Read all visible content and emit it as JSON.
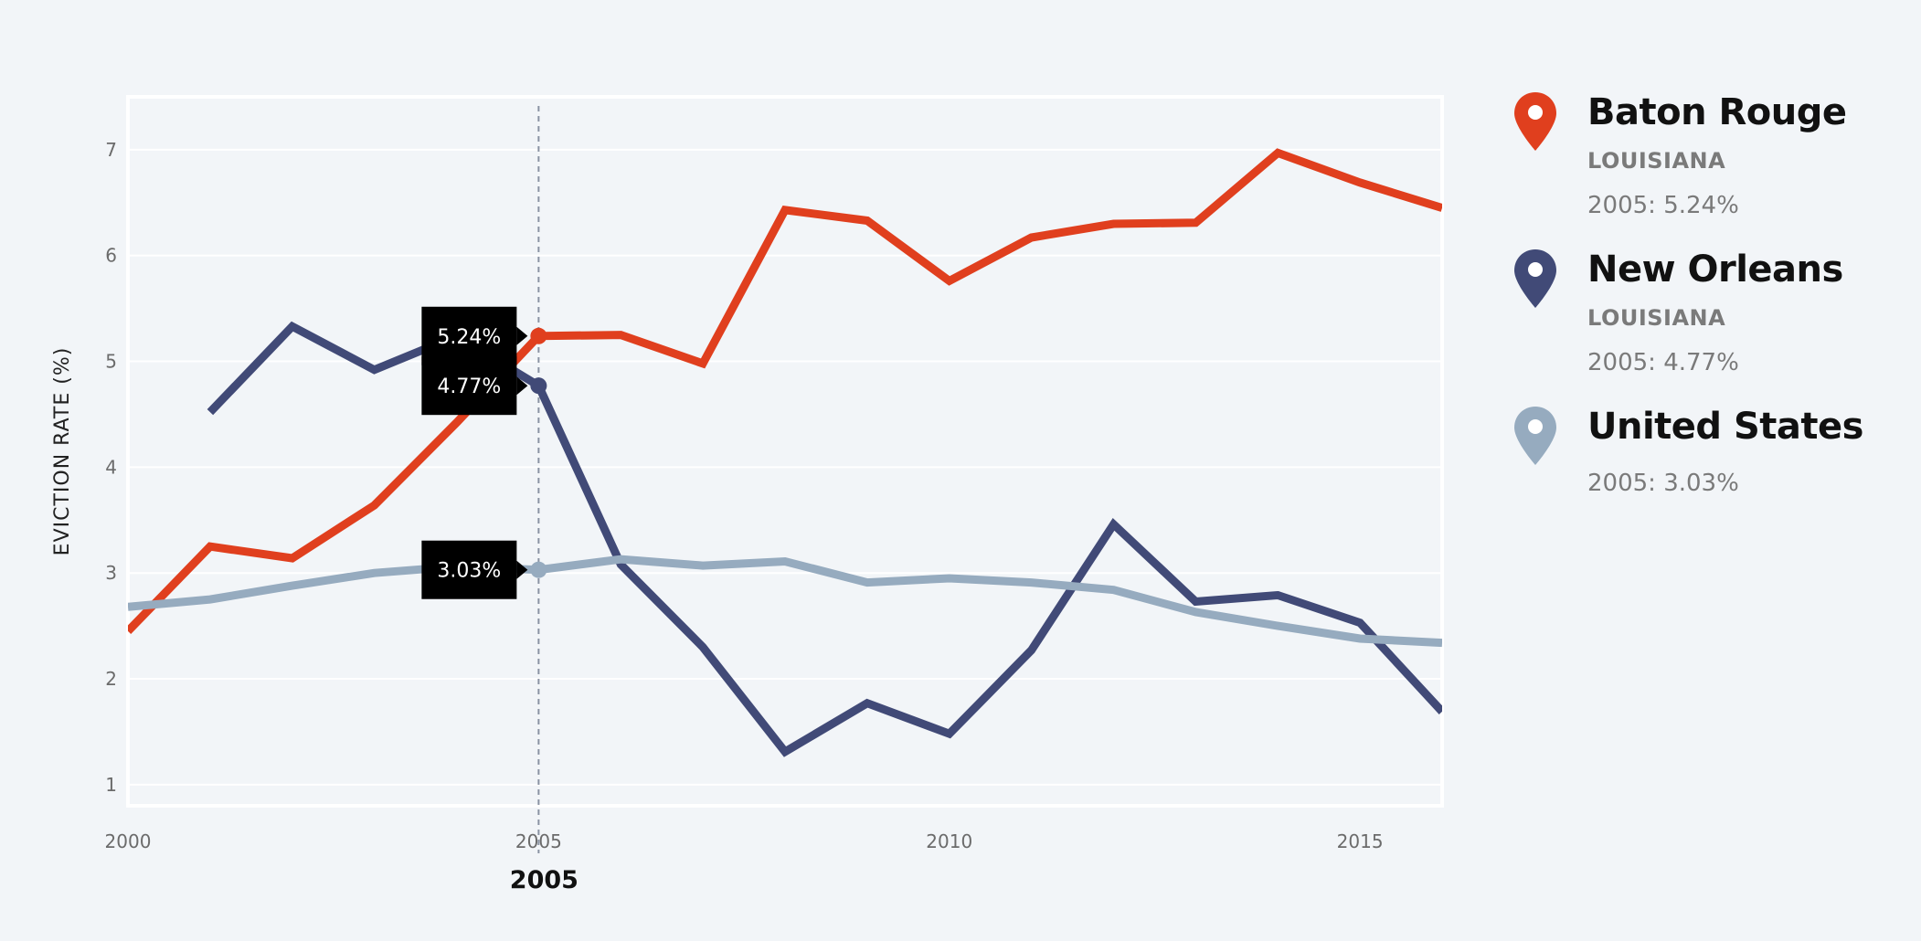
{
  "chart_data": {
    "type": "line",
    "ylabel": "EVICTION RATE (%)",
    "xlim": [
      2000,
      2016
    ],
    "ylim": [
      0.8,
      7.5
    ],
    "x_ticks": [
      2000,
      2005,
      2010,
      2015
    ],
    "y_ticks": [
      1,
      2,
      3,
      4,
      5,
      6,
      7
    ],
    "grid": true,
    "legend_position": "right",
    "highlight_year": 2005,
    "highlight_label": "2005",
    "series": [
      {
        "name": "Baton Rouge",
        "color": "#e03f1e",
        "x": [
          2000,
          2001,
          2002,
          2003,
          2004,
          2005,
          2006,
          2007,
          2008,
          2009,
          2010,
          2011,
          2012,
          2013,
          2014,
          2015,
          2016
        ],
        "y": [
          2.45,
          3.25,
          3.14,
          3.64,
          4.42,
          5.24,
          5.25,
          4.98,
          6.43,
          6.33,
          5.76,
          6.17,
          6.3,
          6.31,
          6.97,
          6.69,
          6.45
        ],
        "highlight_label": "5.24%"
      },
      {
        "name": "New Orleans",
        "color": "#414a77",
        "x": [
          2001,
          2002,
          2003,
          2004,
          2005,
          2006,
          2007,
          2008,
          2009,
          2010,
          2011,
          2012,
          2013,
          2014,
          2015,
          2016
        ],
        "y": [
          4.52,
          5.33,
          4.92,
          5.24,
          4.77,
          3.08,
          2.3,
          1.31,
          1.77,
          1.48,
          2.27,
          3.46,
          2.73,
          2.79,
          2.53,
          1.69
        ],
        "highlight_label": "4.77%"
      },
      {
        "name": "United States",
        "color": "#96abbf",
        "x": [
          2000,
          2001,
          2002,
          2003,
          2004,
          2005,
          2006,
          2007,
          2008,
          2009,
          2010,
          2011,
          2012,
          2013,
          2014,
          2015,
          2016
        ],
        "y": [
          2.68,
          2.75,
          2.88,
          3.0,
          3.06,
          3.03,
          3.13,
          3.07,
          3.11,
          2.91,
          2.95,
          2.91,
          2.84,
          2.63,
          2.5,
          2.38,
          2.34
        ],
        "highlight_label": "3.03%"
      }
    ]
  },
  "legend": [
    {
      "name": "Baton Rouge",
      "state": "LOUISIANA",
      "value": "2005: 5.24%",
      "color": "#e03f1e",
      "icon": "map-pin-icon"
    },
    {
      "name": "New Orleans",
      "state": "LOUISIANA",
      "value": "2005: 4.77%",
      "color": "#414a77",
      "icon": "map-pin-icon"
    },
    {
      "name": "United States",
      "state": "",
      "value": "2005: 3.03%",
      "color": "#96abbf",
      "icon": "map-pin-icon"
    }
  ]
}
